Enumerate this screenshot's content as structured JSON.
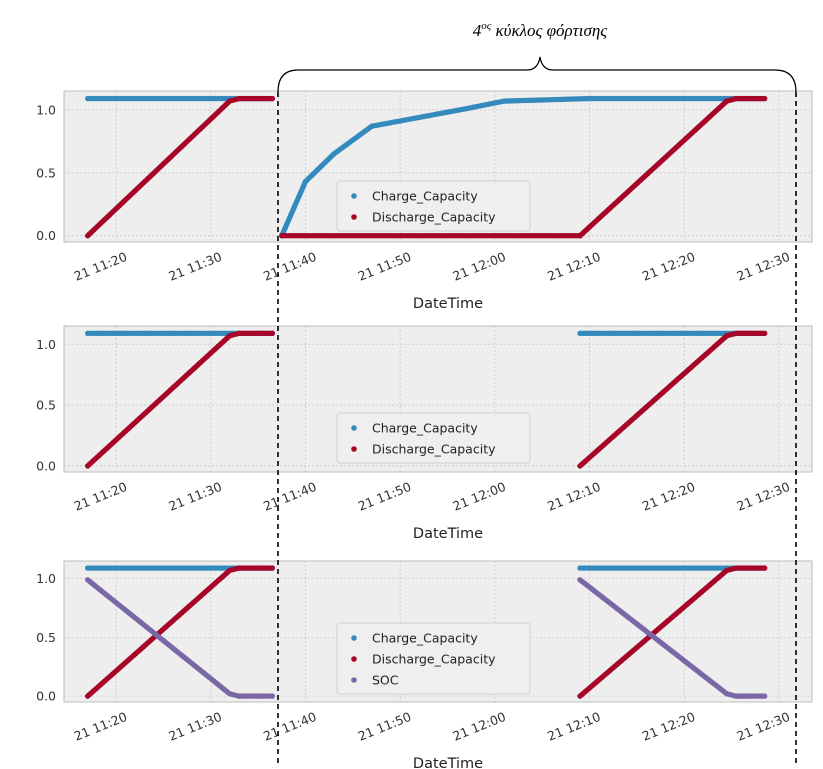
{
  "annotation": {
    "label_main": "4",
    "label_sup": "ος",
    "label_rest": " κύκλος φόρτισης"
  },
  "colors": {
    "charge": "#348abd",
    "discharge": "#a60628",
    "soc": "#7a68a6",
    "axes_bg": "#eeeeee",
    "grid": "#c8c8c8"
  },
  "chart_data": [
    {
      "type": "scatter",
      "title": "",
      "xlabel": "DateTime",
      "ylabel": "",
      "x_tick_labels": [
        "21 11:20",
        "21 11:30",
        "21 11:40",
        "21 11:50",
        "21 12:00",
        "21 12:10",
        "21 12:20",
        "21 12:30"
      ],
      "x_ticks_min": [
        20,
        30,
        40,
        50,
        60,
        70,
        80,
        90
      ],
      "x_range_min": [
        14.5,
        93.5
      ],
      "y_tick_labels": [
        "0.0",
        "0.5",
        "1.0"
      ],
      "y_ticks": [
        0,
        0.5,
        1.0
      ],
      "ylim": [
        -0.05,
        1.15
      ],
      "grid": true,
      "legend_position": "center",
      "series": [
        {
          "name": "Charge_Capacity",
          "color_key": "charge",
          "segments": [
            [
              [
                17,
                1.09
              ],
              [
                36.5,
                1.09
              ]
            ],
            [
              [
                37.5,
                0.0
              ],
              [
                40,
                0.43
              ],
              [
                43,
                0.65
              ],
              [
                47,
                0.87
              ],
              [
                52,
                0.94
              ],
              [
                57,
                1.01
              ],
              [
                61,
                1.07
              ],
              [
                70,
                1.09
              ],
              [
                88.5,
                1.09
              ]
            ]
          ]
        },
        {
          "name": "Discharge_Capacity",
          "color_key": "discharge",
          "segments": [
            [
              [
                17,
                0.0
              ],
              [
                32,
                1.07
              ],
              [
                33,
                1.09
              ],
              [
                36.5,
                1.09
              ]
            ],
            [
              [
                37.5,
                0.0
              ],
              [
                69,
                0.0
              ],
              [
                84.5,
                1.07
              ],
              [
                85.5,
                1.09
              ],
              [
                88.5,
                1.09
              ]
            ]
          ]
        }
      ]
    },
    {
      "type": "scatter",
      "title": "",
      "xlabel": "DateTime",
      "ylabel": "",
      "x_tick_labels": [
        "21 11:20",
        "21 11:30",
        "21 11:40",
        "21 11:50",
        "21 12:00",
        "21 12:10",
        "21 12:20",
        "21 12:30"
      ],
      "x_ticks_min": [
        20,
        30,
        40,
        50,
        60,
        70,
        80,
        90
      ],
      "x_range_min": [
        14.5,
        93.5
      ],
      "y_tick_labels": [
        "0.0",
        "0.5",
        "1.0"
      ],
      "y_ticks": [
        0,
        0.5,
        1.0
      ],
      "ylim": [
        -0.05,
        1.15
      ],
      "grid": true,
      "legend_position": "center",
      "series": [
        {
          "name": "Charge_Capacity",
          "color_key": "charge",
          "segments": [
            [
              [
                17,
                1.09
              ],
              [
                36.5,
                1.09
              ]
            ],
            [
              [
                69,
                1.09
              ],
              [
                88.5,
                1.09
              ]
            ]
          ]
        },
        {
          "name": "Discharge_Capacity",
          "color_key": "discharge",
          "segments": [
            [
              [
                17,
                0.0
              ],
              [
                32,
                1.07
              ],
              [
                33,
                1.09
              ],
              [
                36.5,
                1.09
              ]
            ],
            [
              [
                69,
                0.0
              ],
              [
                84.5,
                1.07
              ],
              [
                85.5,
                1.09
              ],
              [
                88.5,
                1.09
              ]
            ]
          ]
        }
      ]
    },
    {
      "type": "scatter",
      "title": "",
      "xlabel": "DateTime",
      "ylabel": "",
      "x_tick_labels": [
        "21 11:20",
        "21 11:30",
        "21 11:40",
        "21 11:50",
        "21 12:00",
        "21 12:10",
        "21 12:20",
        "21 12:30"
      ],
      "x_ticks_min": [
        20,
        30,
        40,
        50,
        60,
        70,
        80,
        90
      ],
      "x_range_min": [
        14.5,
        93.5
      ],
      "y_tick_labels": [
        "0.0",
        "0.5",
        "1.0"
      ],
      "y_ticks": [
        0,
        0.5,
        1.0
      ],
      "ylim": [
        -0.05,
        1.15
      ],
      "grid": true,
      "legend_position": "center",
      "series": [
        {
          "name": "Charge_Capacity",
          "color_key": "charge",
          "segments": [
            [
              [
                17,
                1.09
              ],
              [
                36.5,
                1.09
              ]
            ],
            [
              [
                69,
                1.09
              ],
              [
                88.5,
                1.09
              ]
            ]
          ]
        },
        {
          "name": "Discharge_Capacity",
          "color_key": "discharge",
          "segments": [
            [
              [
                17,
                0.0
              ],
              [
                32,
                1.07
              ],
              [
                33,
                1.09
              ],
              [
                36.5,
                1.09
              ]
            ],
            [
              [
                69,
                0.0
              ],
              [
                84.5,
                1.07
              ],
              [
                85.5,
                1.09
              ],
              [
                88.5,
                1.09
              ]
            ]
          ]
        },
        {
          "name": "SOC",
          "color_key": "soc",
          "segments": [
            [
              [
                17,
                0.99
              ],
              [
                32,
                0.02
              ],
              [
                33,
                0.0
              ],
              [
                36.5,
                0.0
              ]
            ],
            [
              [
                69,
                0.99
              ],
              [
                84.5,
                0.02
              ],
              [
                85.5,
                0.0
              ],
              [
                88.5,
                0.0
              ]
            ]
          ]
        }
      ]
    }
  ]
}
